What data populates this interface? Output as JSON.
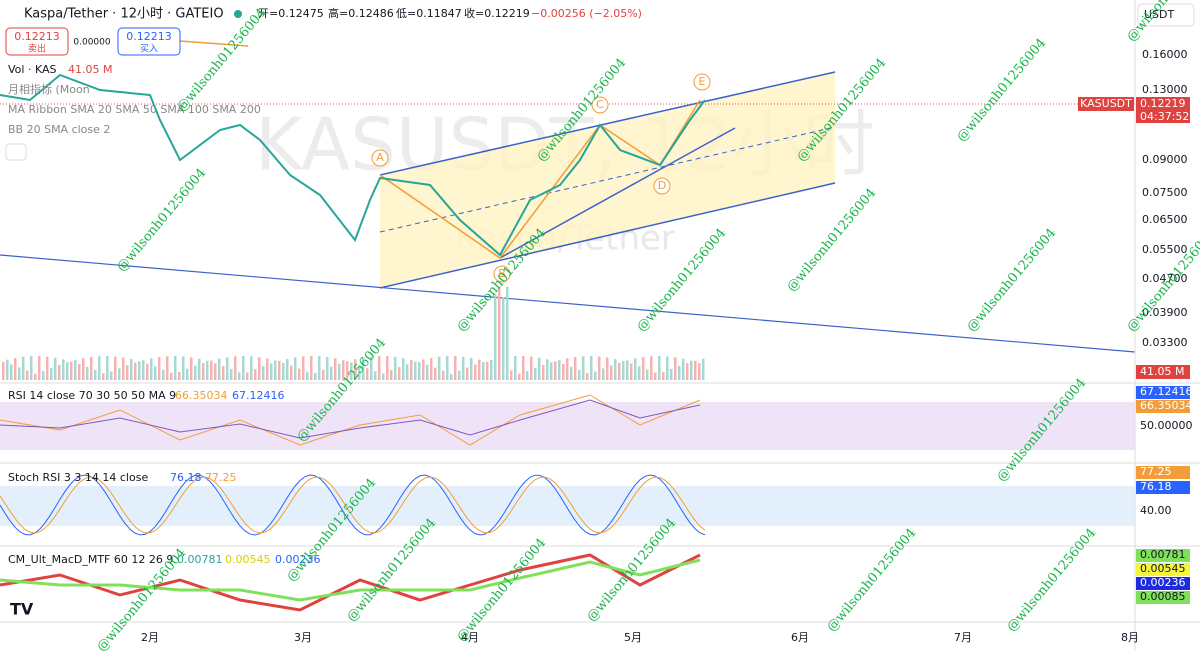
{
  "header": {
    "symbol": "Kaspa/Tether · 12小时 · GATEIO",
    "open": "开=0.12475",
    "high": "高=0.12486",
    "low": "低=0.11847",
    "close": "收=0.12219",
    "change": "−0.00256 (−2.05%)",
    "currency": "USDT"
  },
  "trade": {
    "sell_price": "0.12213",
    "sell": "卖出",
    "spread": "0.00000",
    "buy_price": "0.12213",
    "buy": "买入"
  },
  "legend": {
    "volume": "Vol · KAS",
    "volume_value": "41.05 M",
    "moon": "月相指标 (Moon",
    "ma_ribbon": "MA Ribbon SMA 20 SMA 50 SMA 100 SMA 200",
    "bb": "BB 20 SMA close 2"
  },
  "price_axis": [
    "0.16000",
    "0.13000",
    "0.09000",
    "0.07500",
    "0.06500",
    "0.05500",
    "0.04700",
    "0.03900",
    "0.03300"
  ],
  "badges": {
    "symbol": "KASUSDT",
    "price": "0.12219",
    "countdown": "04:37:52",
    "volume": "41.05 M"
  },
  "rsi": {
    "label": "RSI 14 close 70 30 50 50 MA 9",
    "v1": "66.35034",
    "v2": "67.12416",
    "axis": "50.00000"
  },
  "stoch": {
    "label": "Stoch RSI 3 3 14 14 close",
    "k": "76.18",
    "d": "77.25",
    "axis": "40.00"
  },
  "macd": {
    "label": "CM_Ult_MacD_MTF 60 12 26 9",
    "v1": "0.00781",
    "v2": "0.00545",
    "v3": "0.00236",
    "v4": "0.00085"
  },
  "time_axis": [
    "2月",
    "3月",
    "4月",
    "5月",
    "6月",
    "7月",
    "8月"
  ],
  "pattern": [
    "A",
    "B",
    "C",
    "D",
    "E"
  ],
  "watermark": {
    "title": "KASUSDT, 12小时",
    "subtitle": "Kaspa/Tether",
    "user": "@wilsonh01256004"
  }
}
